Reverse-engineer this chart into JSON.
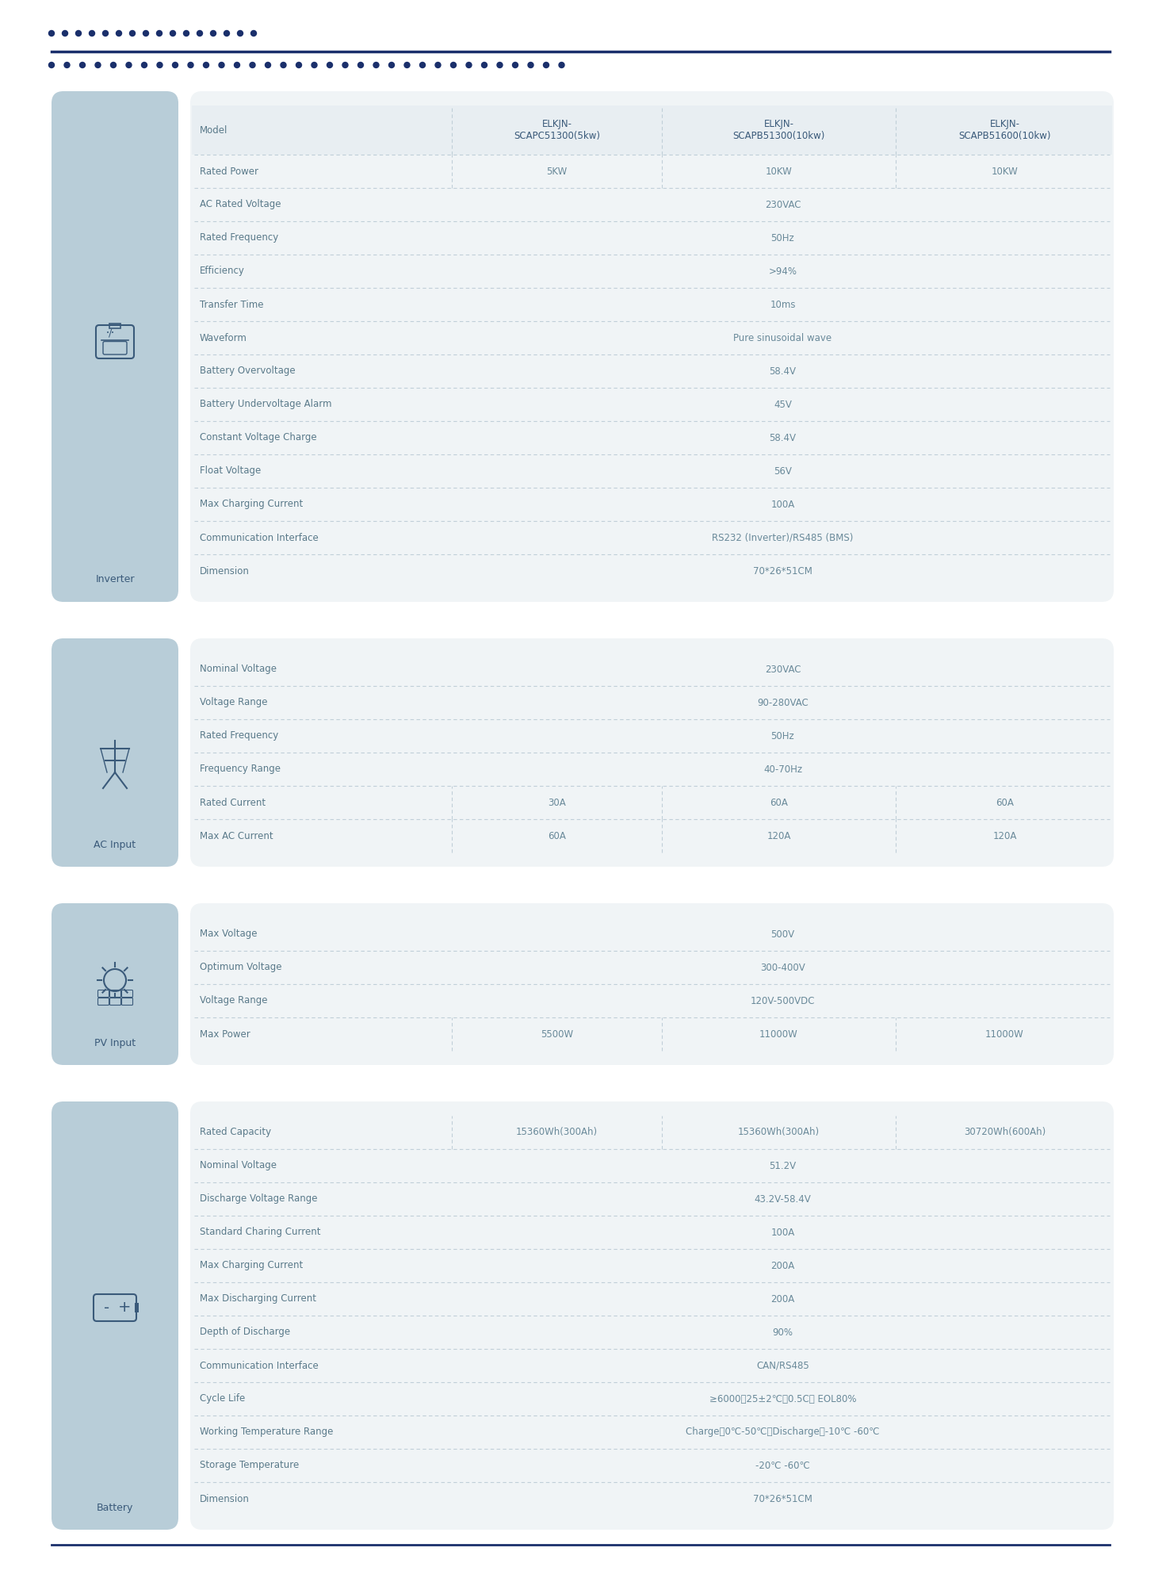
{
  "title_dots_short": "- - - - - - - - - - - - - - -",
  "title_dots_long": "- - - - - - - - - - - - - - - - - - - - - - - - - - - - - - -",
  "bg_color": "#ffffff",
  "panel_bg": "#b8cdd8",
  "table_bg": "#f0f4f6",
  "header_bg": "#e8eef2",
  "divider_color": "#b0bec5",
  "dark_blue": "#1a2f6b",
  "text_color": "#5a7a8a",
  "header_text": "#3a5a7a",
  "value_color": "#6a8a9a",
  "sections": [
    {
      "label": "Inverter",
      "icon": "inverter",
      "rows": [
        {
          "param": "Model",
          "col1": "ELKJN-\nSCAPC51300(5kw)",
          "col2": "ELKJN-\nSCAPB51300(10kw)",
          "col3": "ELKJN-\nSCAPB51600(10kw)",
          "is_header": true
        },
        {
          "param": "Rated Power",
          "col1": "5KW",
          "col2": "10KW",
          "col3": "10KW",
          "is_header": false
        },
        {
          "param": "AC Rated Voltage",
          "col1": "",
          "col2": "230VAC",
          "col3": "",
          "is_header": false
        },
        {
          "param": "Rated Frequency",
          "col1": "",
          "col2": "50Hz",
          "col3": "",
          "is_header": false
        },
        {
          "param": "Efficiency",
          "col1": "",
          "col2": ">94%",
          "col3": "",
          "is_header": false
        },
        {
          "param": "Transfer Time",
          "col1": "",
          "col2": "10ms",
          "col3": "",
          "is_header": false
        },
        {
          "param": "Waveform",
          "col1": "",
          "col2": "Pure sinusoidal wave",
          "col3": "",
          "is_header": false
        },
        {
          "param": "Battery Overvoltage",
          "col1": "",
          "col2": "58.4V",
          "col3": "",
          "is_header": false
        },
        {
          "param": "Battery Undervoltage Alarm",
          "col1": "",
          "col2": "45V",
          "col3": "",
          "is_header": false
        },
        {
          "param": "Constant Voltage Charge",
          "col1": "",
          "col2": "58.4V",
          "col3": "",
          "is_header": false
        },
        {
          "param": "Float Voltage",
          "col1": "",
          "col2": "56V",
          "col3": "",
          "is_header": false
        },
        {
          "param": "Max Charging Current",
          "col1": "",
          "col2": "100A",
          "col3": "",
          "is_header": false
        },
        {
          "param": "Communication Interface",
          "col1": "",
          "col2": "RS232 (Inverter)/RS485 (BMS)",
          "col3": "",
          "is_header": false
        },
        {
          "param": "Dimension",
          "col1": "",
          "col2": "70*26*51CM",
          "col3": "",
          "is_header": false
        }
      ]
    },
    {
      "label": "AC Input",
      "icon": "ac_input",
      "rows": [
        {
          "param": "Nominal Voltage",
          "col1": "",
          "col2": "230VAC",
          "col3": "",
          "is_header": false
        },
        {
          "param": "Voltage Range",
          "col1": "",
          "col2": "90-280VAC",
          "col3": "",
          "is_header": false
        },
        {
          "param": "Rated Frequency",
          "col1": "",
          "col2": "50Hz",
          "col3": "",
          "is_header": false
        },
        {
          "param": "Frequency Range",
          "col1": "",
          "col2": "40-70Hz",
          "col3": "",
          "is_header": false
        },
        {
          "param": "Rated Current",
          "col1": "30A",
          "col2": "60A",
          "col3": "60A",
          "is_header": false
        },
        {
          "param": "Max AC Current",
          "col1": "60A",
          "col2": "120A",
          "col3": "120A",
          "is_header": false
        }
      ]
    },
    {
      "label": "PV Input",
      "icon": "pv_input",
      "rows": [
        {
          "param": "Max Voltage",
          "col1": "",
          "col2": "500V",
          "col3": "",
          "is_header": false
        },
        {
          "param": "Optimum Voltage",
          "col1": "",
          "col2": "300-400V",
          "col3": "",
          "is_header": false
        },
        {
          "param": "Voltage Range",
          "col1": "",
          "col2": "120V-500VDC",
          "col3": "",
          "is_header": false
        },
        {
          "param": "Max Power",
          "col1": "5500W",
          "col2": "11000W",
          "col3": "11000W",
          "is_header": false
        }
      ]
    },
    {
      "label": "Battery",
      "icon": "battery",
      "rows": [
        {
          "param": "Rated Capacity",
          "col1": "15360Wh(300Ah)",
          "col2": "15360Wh(300Ah)",
          "col3": "30720Wh(600Ah)",
          "is_header": false
        },
        {
          "param": "Nominal Voltage",
          "col1": "",
          "col2": "51.2V",
          "col3": "",
          "is_header": false
        },
        {
          "param": "Discharge Voltage Range",
          "col1": "",
          "col2": "43.2V-58.4V",
          "col3": "",
          "is_header": false
        },
        {
          "param": "Standard Charing Current",
          "col1": "",
          "col2": "100A",
          "col3": "",
          "is_header": false
        },
        {
          "param": "Max Charging Current",
          "col1": "",
          "col2": "200A",
          "col3": "",
          "is_header": false
        },
        {
          "param": "Max Discharging Current",
          "col1": "",
          "col2": "200A",
          "col3": "",
          "is_header": false
        },
        {
          "param": "Depth of Discharge",
          "col1": "",
          "col2": "90%",
          "col3": "",
          "is_header": false
        },
        {
          "param": "Communication Interface",
          "col1": "",
          "col2": "CAN/RS485",
          "col3": "",
          "is_header": false
        },
        {
          "param": "Cycle Life",
          "col1": "",
          "col2": "≥6000，25±2℃，0.5C， EOL80%",
          "col3": "",
          "is_header": false
        },
        {
          "param": "Working Temperature Range",
          "col1": "",
          "col2": "Charge：0℃-50℃；Discharge：-10℃ -60℃",
          "col3": "",
          "is_header": false
        },
        {
          "param": "Storage Temperature",
          "col1": "",
          "col2": "-20℃ -60℃",
          "col3": "",
          "is_header": false
        },
        {
          "param": "Dimension",
          "col1": "",
          "col2": "70*26*51CM",
          "col3": "",
          "is_header": false
        }
      ]
    }
  ]
}
